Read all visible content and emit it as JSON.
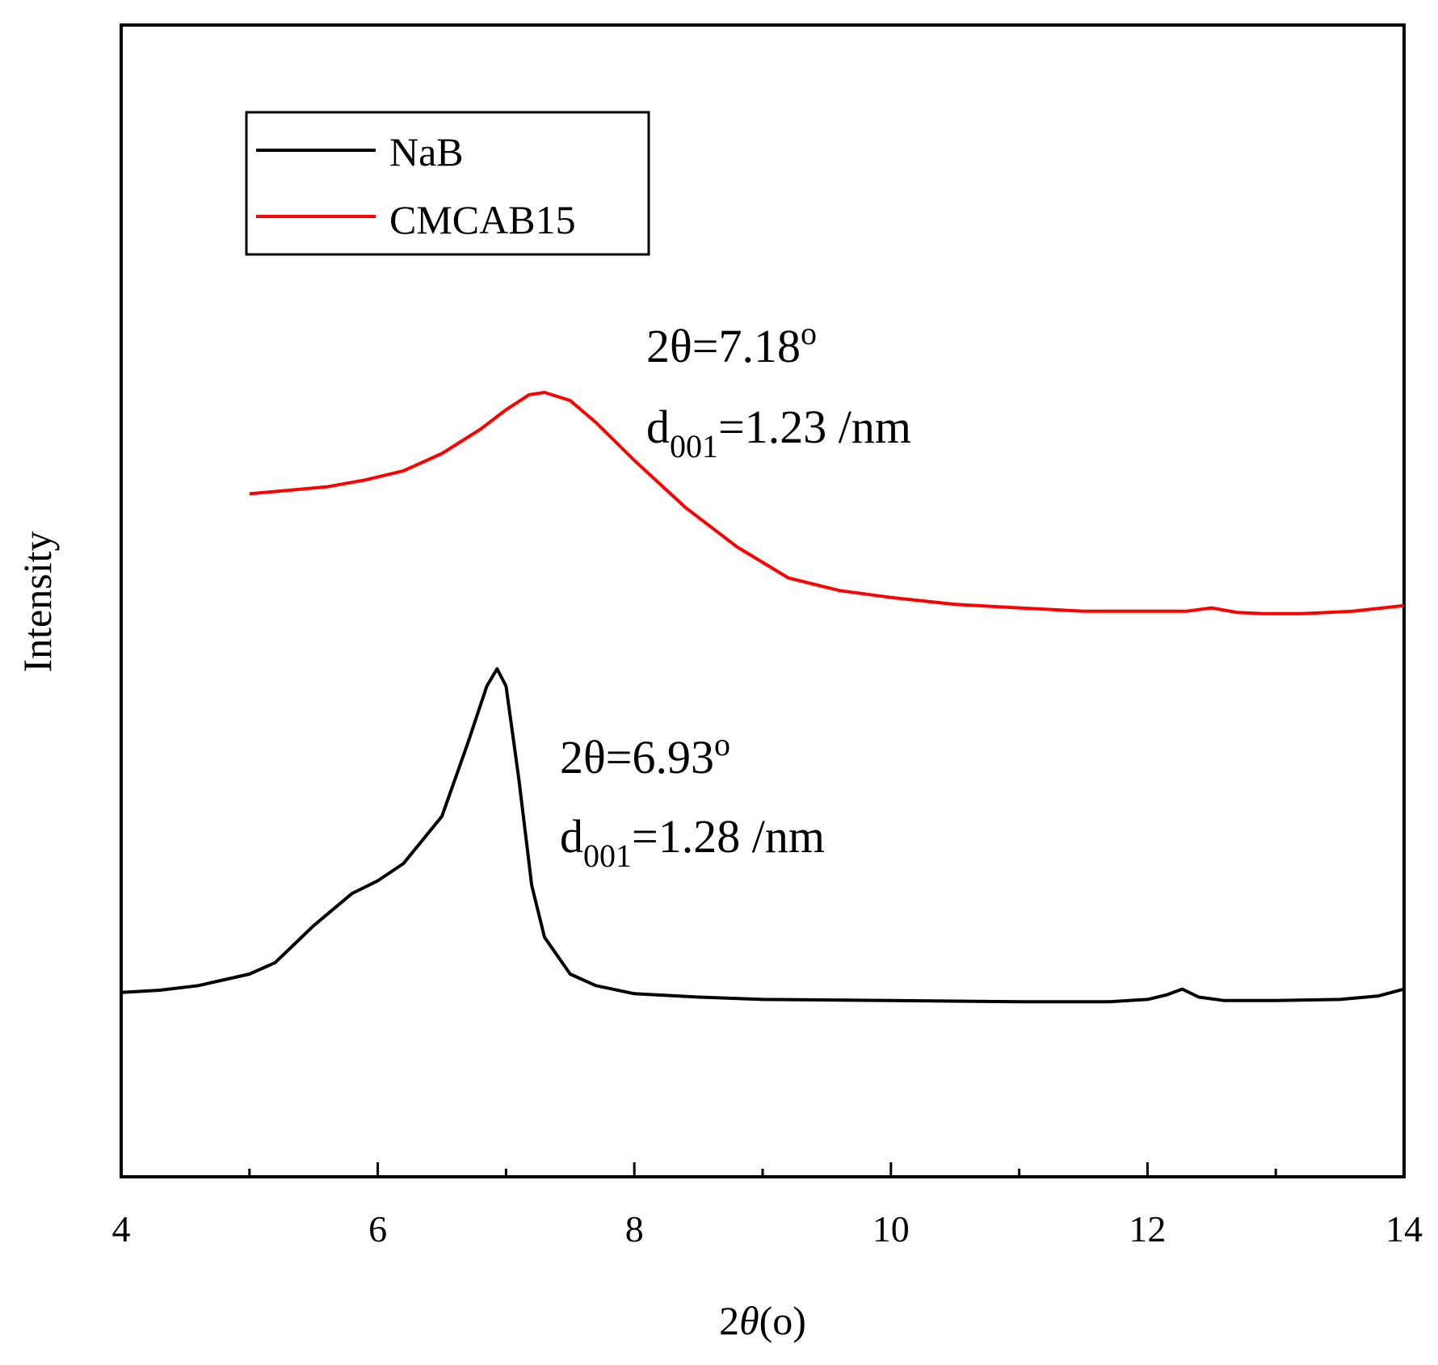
{
  "chart_data": {
    "type": "line",
    "title": "",
    "xlabel_prefix": "2",
    "xlabel_var": "θ",
    "xlabel_suffix": "(o)",
    "ylabel": "Intensity",
    "xlim": [
      4,
      14
    ],
    "ylim": [
      0,
      1
    ],
    "x_ticks": [
      4,
      6,
      8,
      10,
      12,
      14
    ],
    "x_tick_labels": [
      "4",
      "6",
      "8",
      "10",
      "12",
      "14"
    ],
    "x_minor_ticks": [
      5,
      7,
      9,
      11,
      13
    ],
    "y_ticks_shown": false,
    "legend_position": "top-left",
    "series": [
      {
        "name": "NaB",
        "color": "#000000",
        "x": [
          4.0,
          4.3,
          4.6,
          5.0,
          5.2,
          5.5,
          5.8,
          6.0,
          6.2,
          6.5,
          6.7,
          6.85,
          6.93,
          7.0,
          7.1,
          7.2,
          7.3,
          7.5,
          7.7,
          8.0,
          8.5,
          9.0,
          10.0,
          11.0,
          11.7,
          12.0,
          12.15,
          12.27,
          12.4,
          12.6,
          13.0,
          13.5,
          13.8,
          14.0
        ],
        "y": [
          0.16,
          0.162,
          0.166,
          0.176,
          0.186,
          0.218,
          0.246,
          0.257,
          0.272,
          0.313,
          0.376,
          0.426,
          0.441,
          0.426,
          0.345,
          0.253,
          0.208,
          0.176,
          0.166,
          0.159,
          0.156,
          0.154,
          0.153,
          0.152,
          0.152,
          0.154,
          0.158,
          0.163,
          0.156,
          0.153,
          0.153,
          0.154,
          0.157,
          0.163
        ]
      },
      {
        "name": "CMCAB15",
        "color": "#ff0000",
        "x": [
          5.0,
          5.3,
          5.6,
          5.9,
          6.2,
          6.5,
          6.8,
          7.0,
          7.18,
          7.3,
          7.5,
          7.7,
          8.0,
          8.4,
          8.8,
          9.2,
          9.6,
          10.0,
          10.5,
          11.0,
          11.5,
          12.0,
          12.3,
          12.5,
          12.7,
          12.9,
          13.2,
          13.6,
          14.0
        ],
        "y": [
          0.593,
          0.596,
          0.599,
          0.605,
          0.613,
          0.628,
          0.649,
          0.666,
          0.679,
          0.681,
          0.674,
          0.655,
          0.622,
          0.581,
          0.547,
          0.52,
          0.509,
          0.503,
          0.497,
          0.494,
          0.491,
          0.491,
          0.491,
          0.494,
          0.49,
          0.489,
          0.489,
          0.491,
          0.496
        ]
      }
    ],
    "annotations": [
      {
        "id": "cmcab-angle",
        "base": "2θ=7.18",
        "sup": "o"
      },
      {
        "id": "cmcab-d",
        "base": "d",
        "sub": "001",
        "rest": "=1.23 /nm"
      },
      {
        "id": "nab-angle",
        "base": "2θ=6.93",
        "sup": "o"
      },
      {
        "id": "nab-d",
        "base": "d",
        "sub": "001",
        "rest": "=1.28 /nm"
      }
    ]
  }
}
